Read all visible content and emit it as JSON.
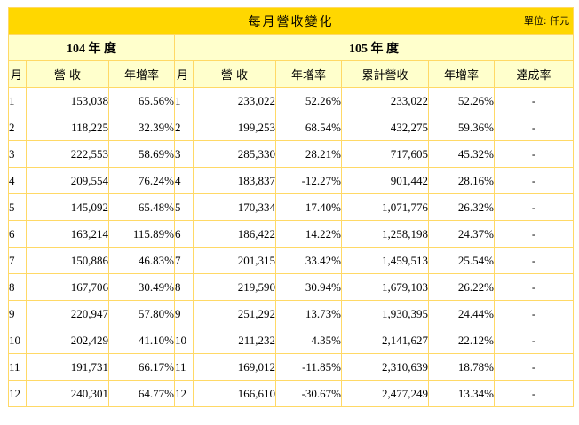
{
  "title": "每月營收變化",
  "unit": "單位: 仟元",
  "year_104": "104 年 度",
  "year_105": "105 年 度",
  "headers_104": [
    "月",
    "營 收",
    "年增率"
  ],
  "headers_105": [
    "月",
    "營 收",
    "年增率",
    "累計營收",
    "年增率",
    "達成率"
  ],
  "rows": [
    {
      "m104": "1",
      "rev104": "153,038",
      "yoy104": "65.56%",
      "m105": "1",
      "rev105": "233,022",
      "yoy105": "52.26%",
      "cum105": "233,022",
      "cumyoy105": "52.26%",
      "ach105": "-"
    },
    {
      "m104": "2",
      "rev104": "118,225",
      "yoy104": "32.39%",
      "m105": "2",
      "rev105": "199,253",
      "yoy105": "68.54%",
      "cum105": "432,275",
      "cumyoy105": "59.36%",
      "ach105": "-"
    },
    {
      "m104": "3",
      "rev104": "222,553",
      "yoy104": "58.69%",
      "m105": "3",
      "rev105": "285,330",
      "yoy105": "28.21%",
      "cum105": "717,605",
      "cumyoy105": "45.32%",
      "ach105": "-"
    },
    {
      "m104": "4",
      "rev104": "209,554",
      "yoy104": "76.24%",
      "m105": "4",
      "rev105": "183,837",
      "yoy105": "-12.27%",
      "cum105": "901,442",
      "cumyoy105": "28.16%",
      "ach105": "-"
    },
    {
      "m104": "5",
      "rev104": "145,092",
      "yoy104": "65.48%",
      "m105": "5",
      "rev105": "170,334",
      "yoy105": "17.40%",
      "cum105": "1,071,776",
      "cumyoy105": "26.32%",
      "ach105": "-"
    },
    {
      "m104": "6",
      "rev104": "163,214",
      "yoy104": "115.89%",
      "m105": "6",
      "rev105": "186,422",
      "yoy105": "14.22%",
      "cum105": "1,258,198",
      "cumyoy105": "24.37%",
      "ach105": "-"
    },
    {
      "m104": "7",
      "rev104": "150,886",
      "yoy104": "46.83%",
      "m105": "7",
      "rev105": "201,315",
      "yoy105": "33.42%",
      "cum105": "1,459,513",
      "cumyoy105": "25.54%",
      "ach105": "-"
    },
    {
      "m104": "8",
      "rev104": "167,706",
      "yoy104": "30.49%",
      "m105": "8",
      "rev105": "219,590",
      "yoy105": "30.94%",
      "cum105": "1,679,103",
      "cumyoy105": "26.22%",
      "ach105": "-"
    },
    {
      "m104": "9",
      "rev104": "220,947",
      "yoy104": "57.80%",
      "m105": "9",
      "rev105": "251,292",
      "yoy105": "13.73%",
      "cum105": "1,930,395",
      "cumyoy105": "24.44%",
      "ach105": "-"
    },
    {
      "m104": "10",
      "rev104": "202,429",
      "yoy104": "41.10%",
      "m105": "10",
      "rev105": "211,232",
      "yoy105": "4.35%",
      "cum105": "2,141,627",
      "cumyoy105": "22.12%",
      "ach105": "-"
    },
    {
      "m104": "11",
      "rev104": "191,731",
      "yoy104": "66.17%",
      "m105": "11",
      "rev105": "169,012",
      "yoy105": "-11.85%",
      "cum105": "2,310,639",
      "cumyoy105": "18.78%",
      "ach105": "-"
    },
    {
      "m104": "12",
      "rev104": "240,301",
      "yoy104": "64.77%",
      "m105": "12",
      "rev105": "166,610",
      "yoy105": "-30.67%",
      "cum105": "2,477,249",
      "cumyoy105": "13.34%",
      "ach105": "-"
    }
  ]
}
